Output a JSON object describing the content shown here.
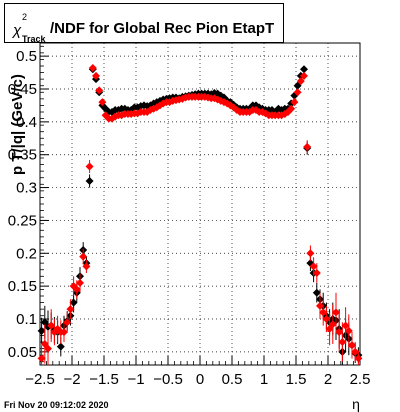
{
  "chart_data": {
    "type": "scatter",
    "title_main": "/NDF for Global Rec Pion EtapT",
    "title_chi": "χ",
    "title_sup": "2",
    "title_sub": "Track",
    "ylabel": "p_T/|q| (GeV/c)",
    "ylabel_display": "p T/|q| (GeV/c)",
    "xlabel": "η",
    "xlim": [
      -2.5,
      2.5
    ],
    "ylim": [
      0.03,
      0.52
    ],
    "grid": true,
    "x_ticks": [
      -2.5,
      -2,
      -1.5,
      -1,
      -0.5,
      0,
      0.5,
      1,
      1.5,
      2,
      2.5
    ],
    "x_tick_labels": [
      "−2.5",
      "−2",
      "−1.5",
      "−1",
      "−0.5",
      "0",
      "0.5",
      "1",
      "1.5",
      "2",
      "2.5"
    ],
    "y_ticks": [
      0.05,
      0.1,
      0.15,
      0.2,
      0.25,
      0.3,
      0.35,
      0.4,
      0.45,
      0.5
    ],
    "y_tick_labels": [
      "0.05",
      "0.1",
      "0.15",
      "0.2",
      "0.25",
      "0.3",
      "0.35",
      "0.4",
      "0.45",
      "0.5"
    ],
    "timestamp": "Fri Nov 20 09:12:02 2020",
    "series": [
      {
        "color": "#000000",
        "x": [
          -2.475,
          -2.425,
          -2.375,
          -2.325,
          -2.275,
          -2.225,
          -2.175,
          -2.125,
          -2.075,
          -2.025,
          -1.975,
          -1.925,
          -1.875,
          -1.825,
          -1.775,
          -1.725,
          -1.675,
          -1.625,
          -1.575,
          -1.525,
          -1.475,
          -1.425,
          -1.375,
          -1.325,
          -1.275,
          -1.225,
          -1.175,
          -1.125,
          -1.075,
          -1.025,
          -0.975,
          -0.925,
          -0.875,
          -0.825,
          -0.775,
          -0.725,
          -0.675,
          -0.625,
          -0.575,
          -0.525,
          -0.475,
          -0.425,
          -0.375,
          -0.325,
          -0.275,
          -0.225,
          -0.175,
          -0.125,
          -0.075,
          -0.025,
          0.025,
          0.075,
          0.125,
          0.175,
          0.225,
          0.275,
          0.325,
          0.375,
          0.425,
          0.475,
          0.525,
          0.575,
          0.625,
          0.675,
          0.725,
          0.775,
          0.825,
          0.875,
          0.925,
          0.975,
          1.025,
          1.075,
          1.125,
          1.175,
          1.225,
          1.275,
          1.325,
          1.375,
          1.425,
          1.475,
          1.525,
          1.575,
          1.625,
          1.675,
          1.725,
          1.775,
          1.825,
          1.875,
          1.925,
          1.975,
          2.025,
          2.075,
          2.125,
          2.175,
          2.225,
          2.275,
          2.325,
          2.375,
          2.425,
          2.475
        ],
        "y": [
          0.082,
          0.095,
          0.088,
          0.09,
          0.083,
          0.08,
          0.058,
          0.09,
          0.097,
          0.105,
          0.125,
          0.14,
          0.165,
          0.205,
          0.185,
          0.31,
          0.48,
          0.465,
          0.445,
          0.425,
          0.42,
          0.415,
          0.415,
          0.418,
          0.418,
          0.42,
          0.42,
          0.418,
          0.418,
          0.422,
          0.422,
          0.424,
          0.425,
          0.424,
          0.425,
          0.428,
          0.43,
          0.432,
          0.434,
          0.435,
          0.436,
          0.437,
          0.437,
          0.436,
          0.438,
          0.439,
          0.44,
          0.441,
          0.442,
          0.443,
          0.443,
          0.443,
          0.443,
          0.442,
          0.444,
          0.443,
          0.44,
          0.437,
          0.432,
          0.43,
          0.426,
          0.422,
          0.42,
          0.42,
          0.42,
          0.42,
          0.425,
          0.425,
          0.422,
          0.42,
          0.418,
          0.418,
          0.418,
          0.415,
          0.42,
          0.418,
          0.42,
          0.42,
          0.428,
          0.44,
          0.455,
          0.47,
          0.48,
          0.36,
          0.185,
          0.17,
          0.14,
          0.13,
          0.12,
          0.105,
          0.095,
          0.1,
          0.098,
          0.085,
          0.05,
          0.075,
          0.07,
          0.06,
          0.048,
          0.045
        ],
        "err": [
          0.02,
          0.025,
          0.025,
          0.02,
          0.02,
          0.018,
          0.015,
          0.015,
          0.015,
          0.015,
          0.015,
          0.014,
          0.014,
          0.012,
          0.01,
          0.01,
          0.004,
          0.004,
          0.004,
          0.004,
          0.003,
          0.003,
          0.003,
          0.003,
          0.003,
          0.003,
          0.003,
          0.003,
          0.003,
          0.003,
          0.003,
          0.003,
          0.003,
          0.003,
          0.003,
          0.003,
          0.003,
          0.003,
          0.003,
          0.003,
          0.003,
          0.003,
          0.003,
          0.003,
          0.003,
          0.003,
          0.003,
          0.003,
          0.003,
          0.003,
          0.003,
          0.003,
          0.003,
          0.003,
          0.003,
          0.003,
          0.003,
          0.003,
          0.003,
          0.003,
          0.003,
          0.003,
          0.003,
          0.003,
          0.003,
          0.003,
          0.003,
          0.003,
          0.003,
          0.003,
          0.003,
          0.003,
          0.003,
          0.003,
          0.003,
          0.003,
          0.003,
          0.003,
          0.003,
          0.003,
          0.004,
          0.004,
          0.004,
          0.01,
          0.012,
          0.014,
          0.015,
          0.015,
          0.02,
          0.02,
          0.02,
          0.025,
          0.03,
          0.03,
          0.03,
          0.025,
          0.025,
          0.02,
          0.015,
          0.012
        ]
      },
      {
        "color": "#ff0000",
        "x": [
          -2.475,
          -2.425,
          -2.375,
          -2.325,
          -2.275,
          -2.225,
          -2.175,
          -2.125,
          -2.075,
          -2.025,
          -1.975,
          -1.925,
          -1.875,
          -1.825,
          -1.775,
          -1.725,
          -1.675,
          -1.625,
          -1.575,
          -1.525,
          -1.475,
          -1.425,
          -1.375,
          -1.325,
          -1.275,
          -1.225,
          -1.175,
          -1.125,
          -1.075,
          -1.025,
          -0.975,
          -0.925,
          -0.875,
          -0.825,
          -0.775,
          -0.725,
          -0.675,
          -0.625,
          -0.575,
          -0.525,
          -0.475,
          -0.425,
          -0.375,
          -0.325,
          -0.275,
          -0.225,
          -0.175,
          -0.125,
          -0.075,
          -0.025,
          0.025,
          0.075,
          0.125,
          0.175,
          0.225,
          0.275,
          0.325,
          0.375,
          0.425,
          0.475,
          0.525,
          0.575,
          0.625,
          0.675,
          0.725,
          0.775,
          0.825,
          0.875,
          0.925,
          0.975,
          1.025,
          1.075,
          1.125,
          1.175,
          1.225,
          1.275,
          1.325,
          1.375,
          1.425,
          1.475,
          1.525,
          1.575,
          1.625,
          1.675,
          1.725,
          1.775,
          1.825,
          1.875,
          1.925,
          1.975,
          2.025,
          2.075,
          2.125,
          2.175,
          2.225,
          2.275,
          2.325,
          2.375,
          2.425,
          2.475
        ],
        "y": [
          0.04,
          0.062,
          0.055,
          0.09,
          0.08,
          0.085,
          0.08,
          0.08,
          0.095,
          0.115,
          0.15,
          0.145,
          0.155,
          0.195,
          0.18,
          0.332,
          0.482,
          0.47,
          0.448,
          0.43,
          0.41,
          0.405,
          0.405,
          0.408,
          0.41,
          0.41,
          0.412,
          0.412,
          0.412,
          0.413,
          0.413,
          0.415,
          0.415,
          0.415,
          0.418,
          0.42,
          0.422,
          0.425,
          0.428,
          0.43,
          0.43,
          0.432,
          0.433,
          0.434,
          0.435,
          0.437,
          0.438,
          0.438,
          0.438,
          0.438,
          0.438,
          0.438,
          0.437,
          0.436,
          0.436,
          0.434,
          0.432,
          0.43,
          0.428,
          0.425,
          0.422,
          0.418,
          0.415,
          0.415,
          0.415,
          0.415,
          0.418,
          0.418,
          0.415,
          0.415,
          0.413,
          0.41,
          0.41,
          0.41,
          0.41,
          0.41,
          0.412,
          0.415,
          0.42,
          0.43,
          0.445,
          0.462,
          0.47,
          0.362,
          0.2,
          0.18,
          0.17,
          0.12,
          0.11,
          0.1,
          0.085,
          0.092,
          0.11,
          0.08,
          0.065,
          0.09,
          0.082,
          0.06,
          0.05,
          0.04
        ],
        "err": [
          0.02,
          0.03,
          0.028,
          0.025,
          0.02,
          0.02,
          0.018,
          0.015,
          0.015,
          0.015,
          0.015,
          0.014,
          0.014,
          0.012,
          0.01,
          0.01,
          0.004,
          0.004,
          0.004,
          0.004,
          0.003,
          0.003,
          0.003,
          0.003,
          0.003,
          0.003,
          0.003,
          0.003,
          0.003,
          0.003,
          0.003,
          0.003,
          0.003,
          0.003,
          0.003,
          0.003,
          0.003,
          0.003,
          0.003,
          0.003,
          0.003,
          0.003,
          0.003,
          0.003,
          0.003,
          0.003,
          0.003,
          0.003,
          0.003,
          0.003,
          0.003,
          0.003,
          0.003,
          0.003,
          0.003,
          0.003,
          0.003,
          0.003,
          0.003,
          0.003,
          0.003,
          0.003,
          0.003,
          0.003,
          0.003,
          0.003,
          0.003,
          0.003,
          0.003,
          0.003,
          0.003,
          0.003,
          0.003,
          0.003,
          0.003,
          0.003,
          0.003,
          0.003,
          0.003,
          0.003,
          0.004,
          0.004,
          0.004,
          0.01,
          0.012,
          0.014,
          0.015,
          0.02,
          0.02,
          0.02,
          0.025,
          0.03,
          0.03,
          0.03,
          0.03,
          0.028,
          0.025,
          0.02,
          0.015,
          0.012
        ]
      }
    ]
  }
}
